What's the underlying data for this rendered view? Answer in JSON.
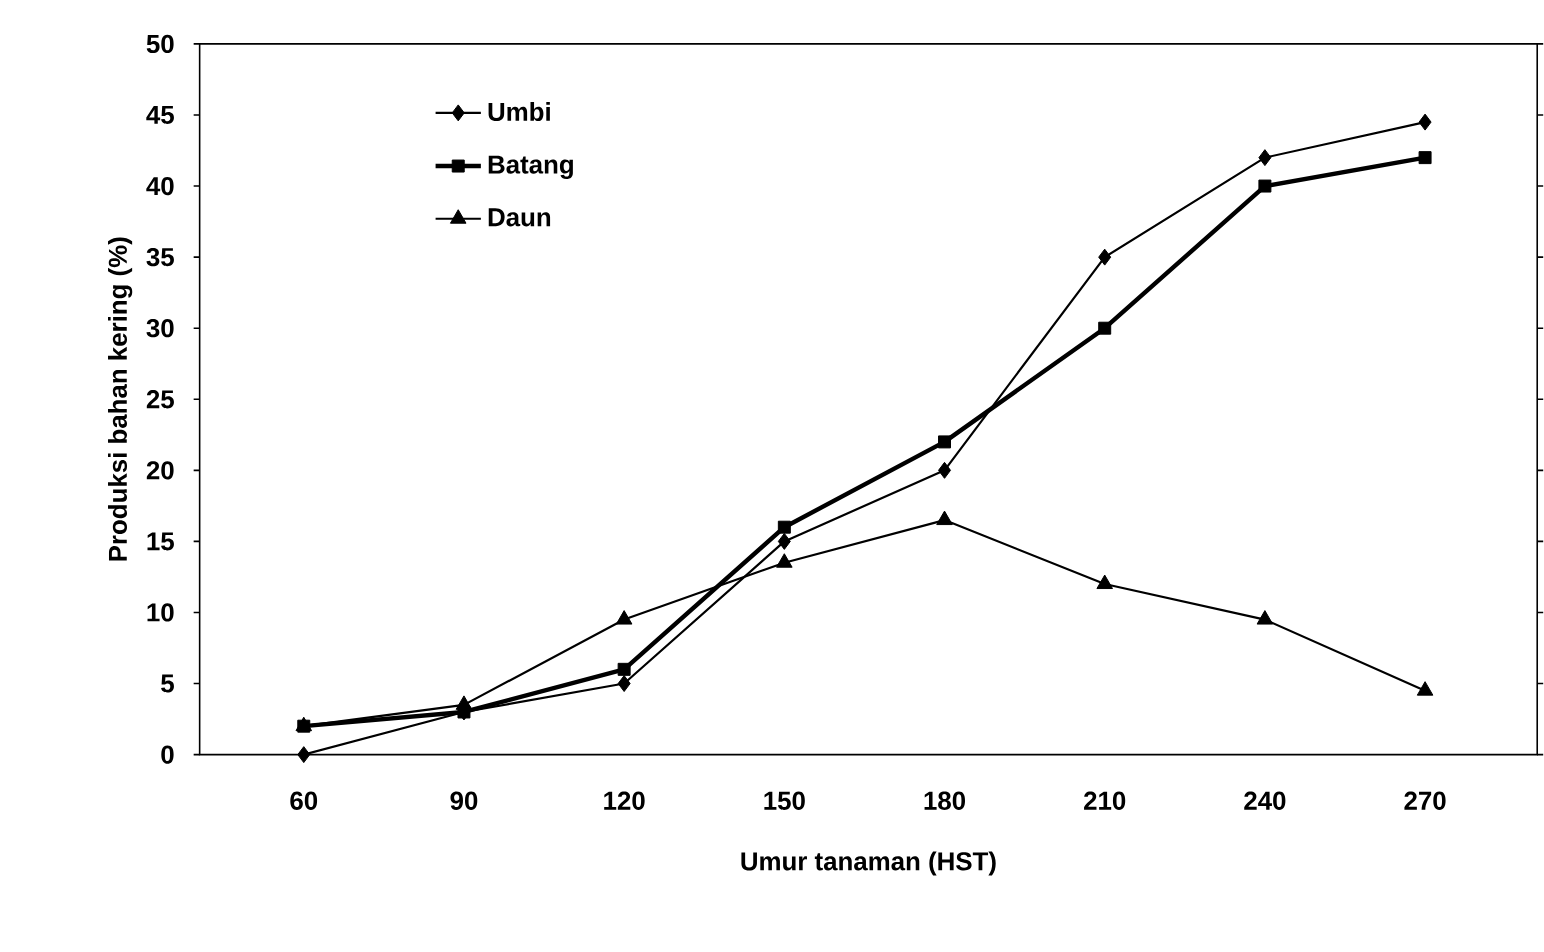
{
  "chart_data": {
    "type": "line",
    "xlabel": "Umur tanaman (HST)",
    "ylabel": "Produksi bahan kering (%)",
    "categories": [
      "60",
      "90",
      "120",
      "150",
      "180",
      "210",
      "240",
      "270"
    ],
    "series": [
      {
        "name": "Umbi",
        "color": "#000000",
        "marker": "diamond",
        "values": [
          0,
          3,
          5,
          15,
          20,
          35,
          42,
          44.5
        ]
      },
      {
        "name": "Batang",
        "color": "#000000",
        "marker": "square",
        "values": [
          2,
          3,
          6,
          16,
          22,
          30,
          40,
          42
        ]
      },
      {
        "name": "Daun",
        "color": "#000000",
        "marker": "triangle",
        "values": [
          2,
          3.5,
          9.5,
          13.5,
          16.5,
          12,
          9.5,
          4.5
        ]
      }
    ],
    "ylim": [
      0,
      50
    ],
    "yticks": [
      0,
      5,
      10,
      15,
      20,
      25,
      30,
      35,
      40,
      45,
      50
    ],
    "grid": false,
    "legend": "top left",
    "line_style": "solid"
  }
}
